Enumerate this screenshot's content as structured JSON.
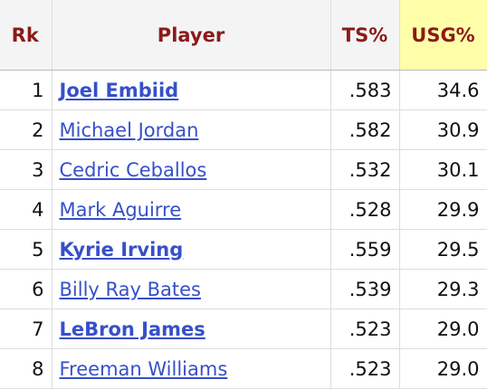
{
  "table": {
    "header": [
      "Rk",
      "Player",
      "TS%",
      "USG%"
    ],
    "rows": [
      {
        "rk": "1",
        "player": "Joel Embiid",
        "bold": true,
        "ts": ".583",
        "usg": "34.6"
      },
      {
        "rk": "2",
        "player": "Michael Jordan",
        "bold": false,
        "ts": ".582",
        "usg": "30.9"
      },
      {
        "rk": "3",
        "player": "Cedric Ceballos",
        "bold": false,
        "ts": ".532",
        "usg": "30.1"
      },
      {
        "rk": "4",
        "player": "Mark Aguirre",
        "bold": false,
        "ts": ".528",
        "usg": "29.9"
      },
      {
        "rk": "5",
        "player": "Kyrie Irving",
        "bold": true,
        "ts": ".559",
        "usg": "29.5"
      },
      {
        "rk": "6",
        "player": "Billy Ray Bates",
        "bold": false,
        "ts": ".539",
        "usg": "29.3"
      },
      {
        "rk": "7",
        "player": "LeBron James",
        "bold": true,
        "ts": ".523",
        "usg": "29.0"
      },
      {
        "rk": "8",
        "player": "Freeman Williams",
        "bold": false,
        "ts": ".523",
        "usg": "29.0"
      }
    ]
  }
}
